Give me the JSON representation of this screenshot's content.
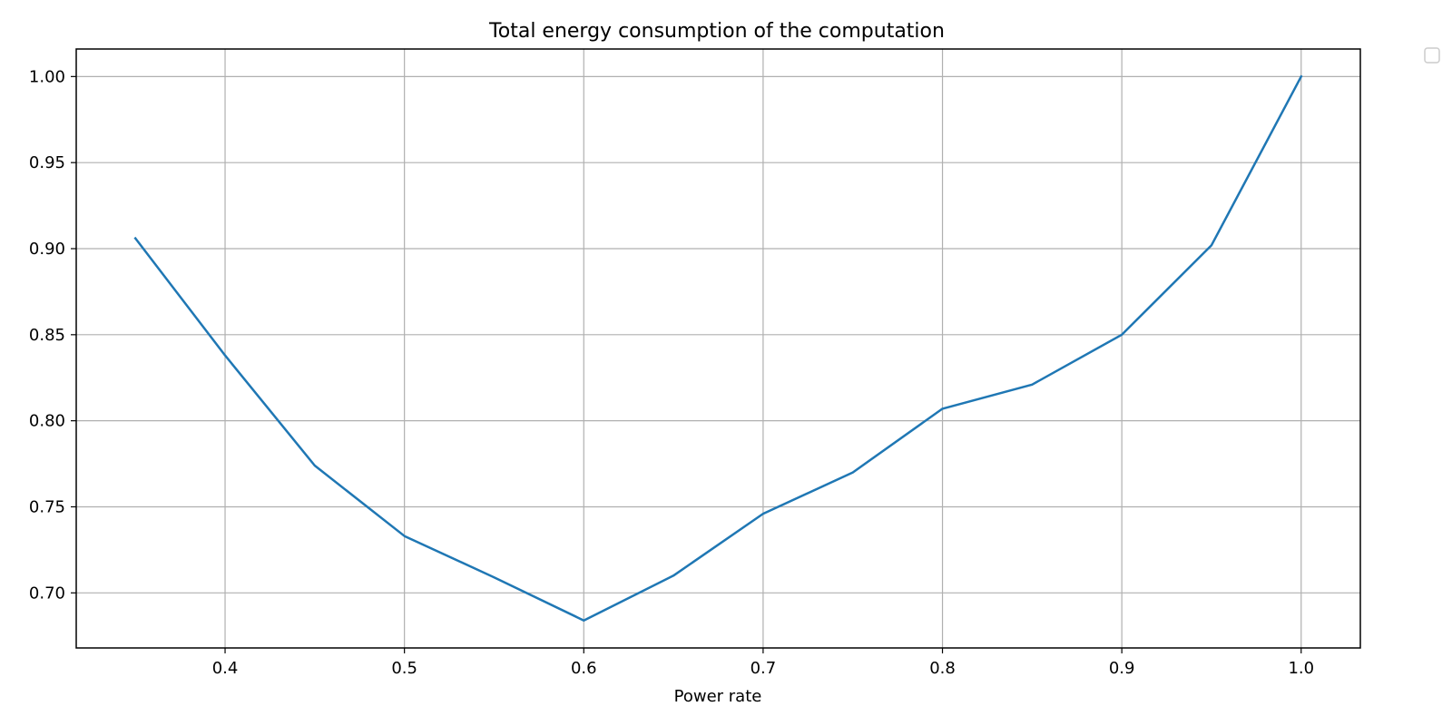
{
  "chart_data": {
    "type": "line",
    "title": "Total energy consumption of the computation",
    "xlabel": "Power rate",
    "ylabel": "",
    "xlim": [
      0.317,
      1.033
    ],
    "ylim": [
      0.668,
      1.016
    ],
    "xticks": [
      0.4,
      0.5,
      0.6,
      0.7,
      0.8,
      0.9,
      1.0
    ],
    "xtick_labels": [
      "0.4",
      "0.5",
      "0.6",
      "0.7",
      "0.8",
      "0.9",
      "1.0"
    ],
    "yticks": [
      0.7,
      0.75,
      0.8,
      0.85,
      0.9,
      0.95,
      1.0
    ],
    "ytick_labels": [
      "0.70",
      "0.75",
      "0.80",
      "0.85",
      "0.90",
      "0.95",
      "1.00"
    ],
    "grid": true,
    "legend": "top-right outside, empty",
    "series": [
      {
        "color": "#1f77b4",
        "x": [
          0.35,
          0.4,
          0.45,
          0.5,
          0.55,
          0.6,
          0.65,
          0.7,
          0.75,
          0.8,
          0.85,
          0.9,
          0.95,
          1.0
        ],
        "y": [
          0.906,
          0.838,
          0.774,
          0.733,
          0.709,
          0.684,
          0.71,
          0.746,
          0.77,
          0.807,
          0.821,
          0.85,
          0.902,
          1.0
        ]
      }
    ]
  }
}
